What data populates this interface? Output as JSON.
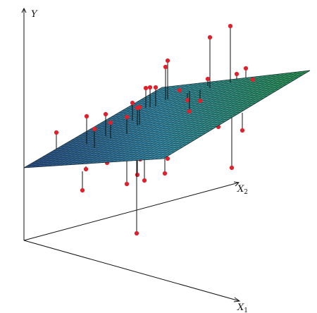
{
  "axes": {
    "y_label": "Y",
    "x1_label": "X",
    "x1_subscript": "1",
    "x2_label": "X",
    "x2_subscript": "2"
  },
  "plane": {
    "colors": {
      "left": "#2f4f8f",
      "mid": "#3b8fb0",
      "right": "#2f9a56",
      "grid": "#10241a"
    }
  },
  "points": {
    "color": "#e0202a"
  }
}
